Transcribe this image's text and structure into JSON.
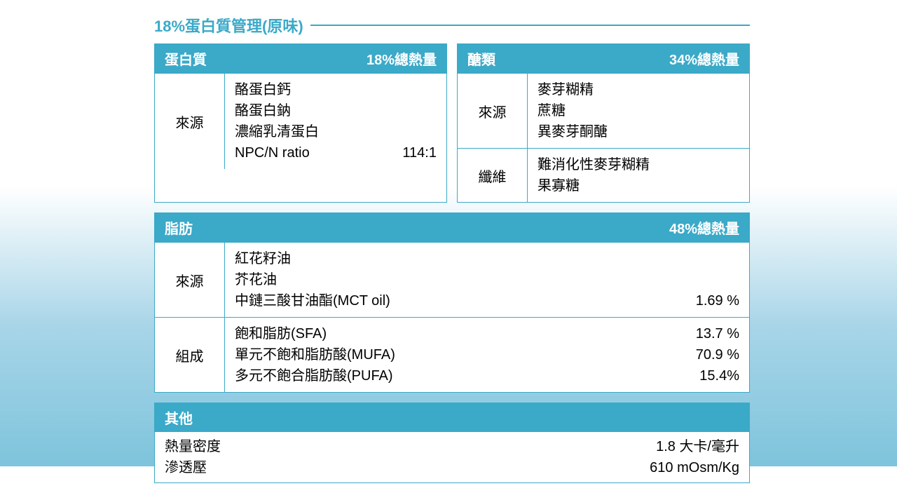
{
  "colors": {
    "accent": "#3ba9c8",
    "header_text": "#ffffff",
    "body_text": "#000000",
    "panel_bg": "#ffffff"
  },
  "title": "18%蛋白質管理(原味)",
  "protein": {
    "header_left": "蛋白質",
    "header_right": "18%總熱量",
    "source_label": "來源",
    "lines": [
      {
        "left": "酪蛋白鈣",
        "right": ""
      },
      {
        "left": "酪蛋白鈉",
        "right": ""
      },
      {
        "left": "濃縮乳清蛋白",
        "right": ""
      },
      {
        "left": "NPC/N ratio",
        "right": "114:1"
      }
    ]
  },
  "carb": {
    "header_left": "醣類",
    "header_right": "34%總熱量",
    "source_label": "來源",
    "source_lines": [
      {
        "left": "麥芽糊精",
        "right": ""
      },
      {
        "left": "蔗糖",
        "right": ""
      },
      {
        "left": "異麥芽酮醣",
        "right": ""
      }
    ],
    "fiber_label": "纖維",
    "fiber_lines": [
      {
        "left": "難消化性麥芽糊精",
        "right": ""
      },
      {
        "left": "果寡糖",
        "right": ""
      }
    ]
  },
  "fat": {
    "header_left": "脂肪",
    "header_right": "48%總熱量",
    "source_label": "來源",
    "source_lines": [
      {
        "left": "紅花籽油",
        "right": ""
      },
      {
        "left": "芥花油",
        "right": ""
      },
      {
        "left": "中鏈三酸甘油酯(MCT oil)",
        "right": "1.69 %"
      }
    ],
    "comp_label": "組成",
    "comp_lines": [
      {
        "left": "飽和脂肪(SFA)",
        "right": "13.7 %"
      },
      {
        "left": "單元不飽和脂肪酸(MUFA)",
        "right": "70.9 %"
      },
      {
        "left": "多元不飽合脂肪酸(PUFA)",
        "right": "15.4%"
      }
    ]
  },
  "other": {
    "header": "其他",
    "lines": [
      {
        "left": "熱量密度",
        "right": "1.8 大卡/毫升"
      },
      {
        "left": "滲透壓",
        "right": "610 mOsm/Kg"
      }
    ]
  }
}
